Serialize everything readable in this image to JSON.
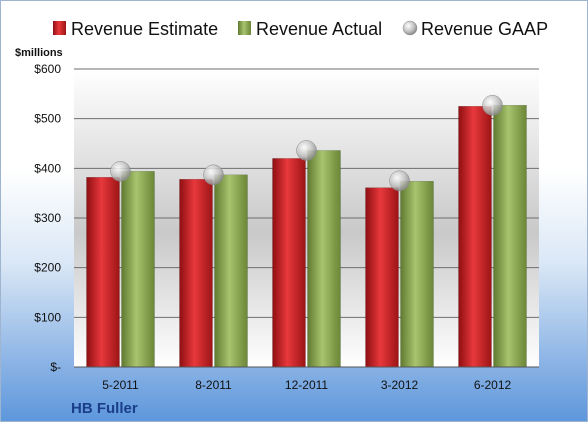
{
  "chart_data": {
    "type": "bar",
    "company": "HB Fuller",
    "units": "$millions",
    "categories": [
      "5-2011",
      "8-2011",
      "12-2011",
      "3-2012",
      "6-2012"
    ],
    "series": [
      {
        "name": "Revenue Estimate",
        "type": "bar",
        "color": "#cc1f24",
        "values": [
          382,
          378,
          420,
          361,
          525
        ]
      },
      {
        "name": "Revenue Actual",
        "type": "bar",
        "color": "#8aa653",
        "values": [
          394,
          387,
          436,
          374,
          527
        ]
      },
      {
        "name": "Revenue GAAP",
        "type": "marker",
        "color": "#b9b9b9",
        "values": [
          394,
          387,
          436,
          375,
          527
        ]
      }
    ],
    "ylim": [
      0,
      600
    ],
    "yticks": [
      0,
      100,
      200,
      300,
      400,
      500,
      600
    ],
    "ytick_labels": [
      "$-",
      "$100",
      "$200",
      "$300",
      "$400",
      "$500",
      "$600"
    ],
    "grid": true,
    "legend_position": "top"
  }
}
